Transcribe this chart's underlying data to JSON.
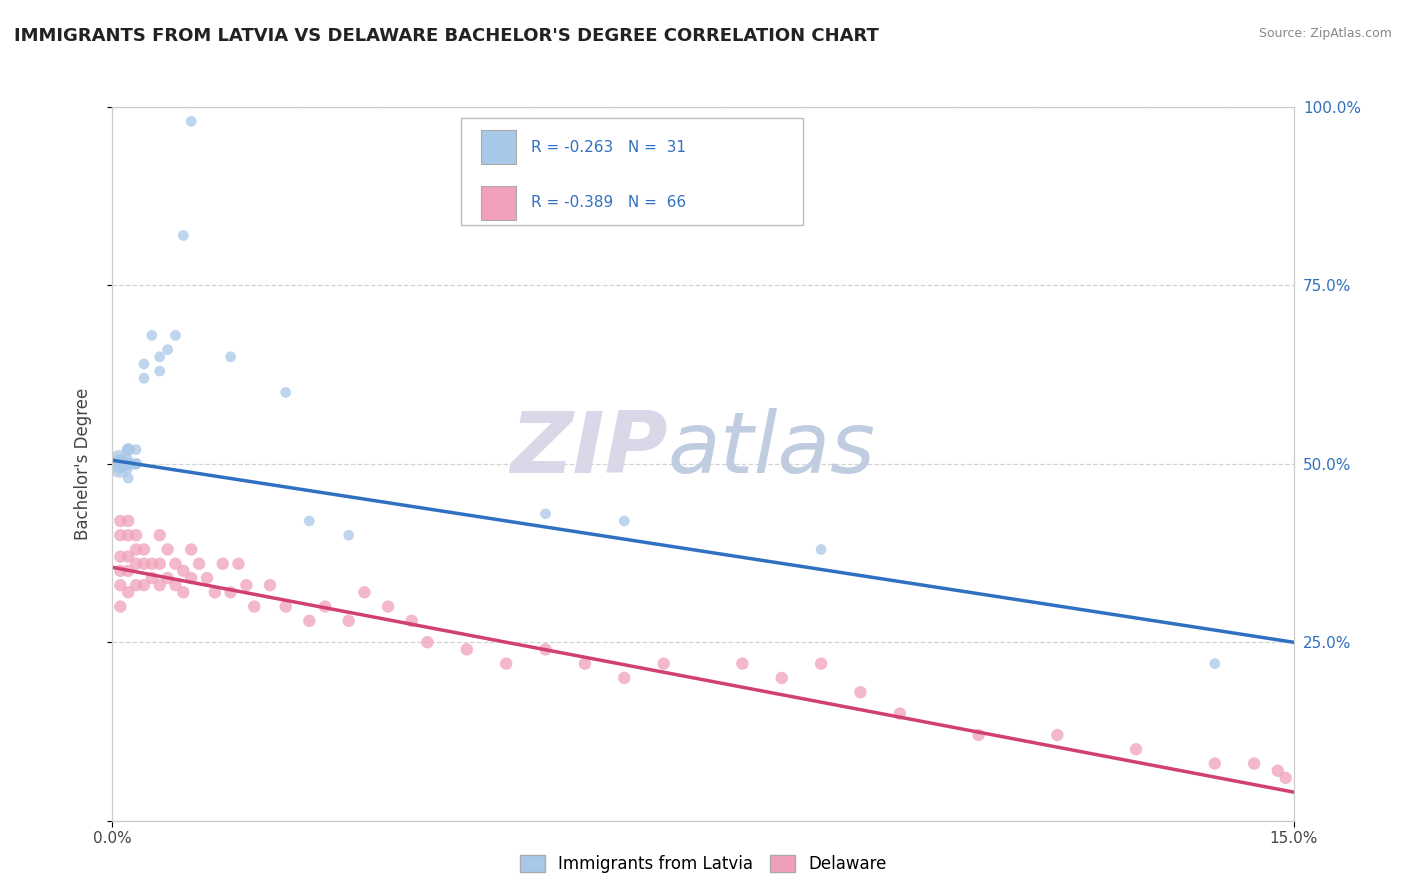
{
  "title": "IMMIGRANTS FROM LATVIA VS DELAWARE BACHELOR'S DEGREE CORRELATION CHART",
  "source": "Source: ZipAtlas.com",
  "ylabel": "Bachelor's Degree",
  "ylabel_right_ticks": [
    "100.0%",
    "75.0%",
    "50.0%",
    "25.0%"
  ],
  "ylabel_right_vals": [
    1.0,
    0.75,
    0.5,
    0.25
  ],
  "xmin": 0.0,
  "xmax": 0.15,
  "ymin": 0.0,
  "ymax": 1.0,
  "legend_r1": "R = -0.263",
  "legend_n1": "N =  31",
  "legend_r2": "R = -0.389",
  "legend_n2": "N =  66",
  "blue_color": "#a8c8e8",
  "pink_color": "#f0a0b8",
  "line_blue": "#3070c0",
  "line_pink": "#d04070",
  "text_blue": "#3070c0",
  "watermark_part1": "ZIP",
  "watermark_part2": "atlas",
  "legend_label1": "Immigrants from Latvia",
  "legend_label2": "Delaware",
  "blue_scatter_x": [
    0.001,
    0.001,
    0.001,
    0.001,
    0.001,
    0.001,
    0.002,
    0.002,
    0.002,
    0.002,
    0.002,
    0.003,
    0.003,
    0.003,
    0.004,
    0.004,
    0.005,
    0.006,
    0.006,
    0.007,
    0.008,
    0.009,
    0.01,
    0.015,
    0.022,
    0.025,
    0.03,
    0.055,
    0.065,
    0.09,
    0.14
  ],
  "blue_scatter_y": [
    0.5,
    0.5,
    0.5,
    0.5,
    0.5,
    0.5,
    0.52,
    0.52,
    0.5,
    0.5,
    0.48,
    0.5,
    0.5,
    0.52,
    0.64,
    0.62,
    0.68,
    0.63,
    0.65,
    0.66,
    0.68,
    0.82,
    0.98,
    0.65,
    0.6,
    0.42,
    0.4,
    0.43,
    0.42,
    0.38,
    0.22
  ],
  "blue_scatter_size": [
    400,
    200,
    150,
    100,
    80,
    60,
    80,
    80,
    70,
    60,
    60,
    70,
    60,
    60,
    60,
    60,
    60,
    60,
    60,
    60,
    60,
    60,
    60,
    60,
    60,
    60,
    60,
    60,
    60,
    60,
    60
  ],
  "pink_scatter_x": [
    0.001,
    0.001,
    0.001,
    0.001,
    0.001,
    0.001,
    0.002,
    0.002,
    0.002,
    0.002,
    0.002,
    0.003,
    0.003,
    0.003,
    0.003,
    0.004,
    0.004,
    0.004,
    0.005,
    0.005,
    0.006,
    0.006,
    0.006,
    0.007,
    0.007,
    0.008,
    0.008,
    0.009,
    0.009,
    0.01,
    0.01,
    0.011,
    0.012,
    0.013,
    0.014,
    0.015,
    0.016,
    0.017,
    0.018,
    0.02,
    0.022,
    0.025,
    0.027,
    0.03,
    0.032,
    0.035,
    0.038,
    0.04,
    0.045,
    0.05,
    0.055,
    0.06,
    0.065,
    0.07,
    0.08,
    0.085,
    0.09,
    0.095,
    0.1,
    0.11,
    0.12,
    0.13,
    0.14,
    0.145,
    0.148,
    0.149
  ],
  "pink_scatter_y": [
    0.42,
    0.4,
    0.37,
    0.35,
    0.33,
    0.3,
    0.42,
    0.4,
    0.37,
    0.35,
    0.32,
    0.4,
    0.38,
    0.36,
    0.33,
    0.38,
    0.36,
    0.33,
    0.36,
    0.34,
    0.4,
    0.36,
    0.33,
    0.38,
    0.34,
    0.36,
    0.33,
    0.35,
    0.32,
    0.38,
    0.34,
    0.36,
    0.34,
    0.32,
    0.36,
    0.32,
    0.36,
    0.33,
    0.3,
    0.33,
    0.3,
    0.28,
    0.3,
    0.28,
    0.32,
    0.3,
    0.28,
    0.25,
    0.24,
    0.22,
    0.24,
    0.22,
    0.2,
    0.22,
    0.22,
    0.2,
    0.22,
    0.18,
    0.15,
    0.12,
    0.12,
    0.1,
    0.08,
    0.08,
    0.07,
    0.06
  ],
  "pink_scatter_size": [
    80,
    80,
    80,
    80,
    80,
    80,
    80,
    80,
    80,
    80,
    80,
    80,
    80,
    80,
    80,
    80,
    80,
    80,
    80,
    80,
    80,
    80,
    80,
    80,
    80,
    80,
    80,
    80,
    80,
    80,
    80,
    80,
    80,
    80,
    80,
    80,
    80,
    80,
    80,
    80,
    80,
    80,
    80,
    80,
    80,
    80,
    80,
    80,
    80,
    80,
    80,
    80,
    80,
    80,
    80,
    80,
    80,
    80,
    80,
    80,
    80,
    80,
    80,
    80,
    80,
    80
  ],
  "blue_line_x": [
    0.0,
    0.15
  ],
  "blue_line_y": [
    0.505,
    0.25
  ],
  "pink_line_x": [
    0.0,
    0.15
  ],
  "pink_line_y": [
    0.355,
    0.04
  ],
  "grid_color": "#c8c8c8",
  "bg_color": "#ffffff"
}
